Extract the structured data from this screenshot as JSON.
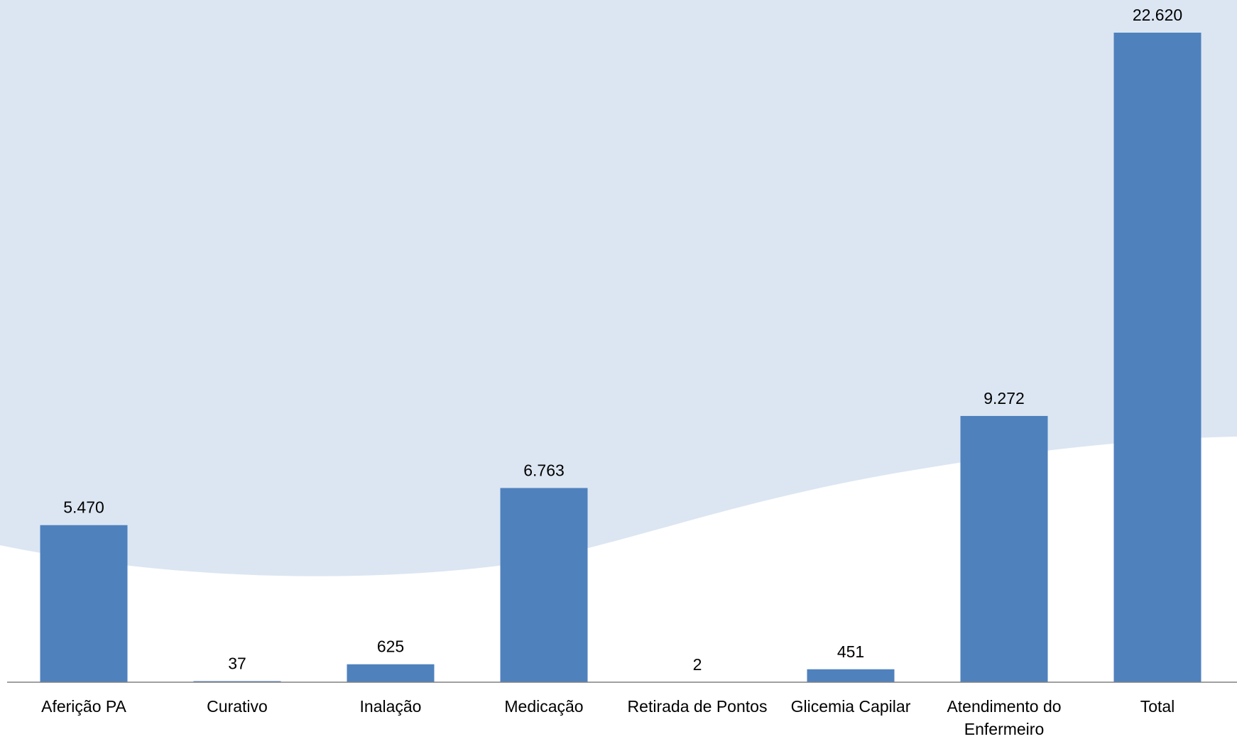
{
  "chart_data": {
    "type": "bar",
    "title": "",
    "xlabel": "",
    "ylabel": "",
    "categories": [
      [
        "Aferição PA"
      ],
      [
        "Curativo"
      ],
      [
        "Inalação"
      ],
      [
        "Medicação"
      ],
      [
        "Retirada de Pontos"
      ],
      [
        "Glicemia Capilar"
      ],
      [
        "Atendimento do",
        "Enfermeiro"
      ],
      [
        "Total"
      ]
    ],
    "values": [
      5470,
      37,
      625,
      6763,
      2,
      451,
      9272,
      22620
    ],
    "value_labels": [
      "5.470",
      "37",
      "625",
      "6.763",
      "2",
      "451",
      "9.272",
      "22.620"
    ],
    "ylim": [
      0,
      22620
    ],
    "grid": false,
    "legend": "none"
  },
  "colors": {
    "bar": "#4f81bd",
    "background_wave": "#dce6f2",
    "axis": "#808080"
  }
}
